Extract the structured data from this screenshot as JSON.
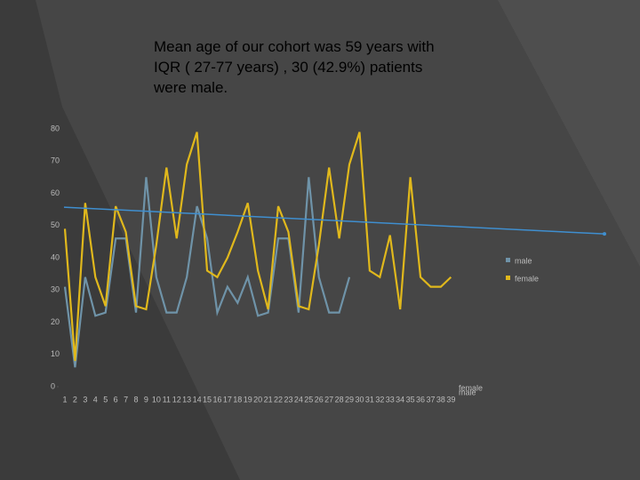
{
  "chart_data": {
    "type": "line",
    "title": [
      "Mean age of our cohort was 59 years with",
      "IQR ( 27-77 years) , 30 (42.9%) patients",
      "were male."
    ],
    "categories": [
      1,
      2,
      3,
      4,
      5,
      6,
      7,
      8,
      9,
      10,
      11,
      12,
      13,
      14,
      15,
      16,
      17,
      18,
      19,
      20,
      21,
      22,
      23,
      24,
      25,
      26,
      27,
      28,
      29,
      30,
      31,
      32,
      33,
      34,
      35,
      36,
      37,
      38,
      39
    ],
    "series": [
      {
        "name": "male",
        "color": "#6f93a8",
        "values": [
          31,
          6,
          34,
          22,
          23,
          46,
          46,
          23,
          65,
          34,
          23,
          23,
          34,
          56,
          46,
          23,
          31,
          26,
          34,
          22,
          23,
          46,
          46,
          23,
          65,
          34,
          23,
          23,
          34,
          null,
          null,
          null,
          null,
          null,
          null,
          null,
          null,
          null,
          null
        ]
      },
      {
        "name": "female",
        "color": "#e0b81c",
        "values": [
          49,
          8,
          57,
          34,
          25,
          56,
          48,
          25,
          24,
          44,
          68,
          46,
          69,
          79,
          36,
          34,
          40,
          48,
          57,
          36,
          24,
          56,
          48,
          25,
          24,
          44,
          68,
          46,
          69,
          79,
          36,
          34,
          47,
          24,
          65,
          34,
          31,
          31,
          34
        ]
      }
    ],
    "trendline": [
      55.7,
      47.4
    ],
    "ylim": [
      0,
      80
    ],
    "yticks": [
      0,
      10,
      20,
      30,
      40,
      50,
      60,
      70,
      80
    ]
  }
}
